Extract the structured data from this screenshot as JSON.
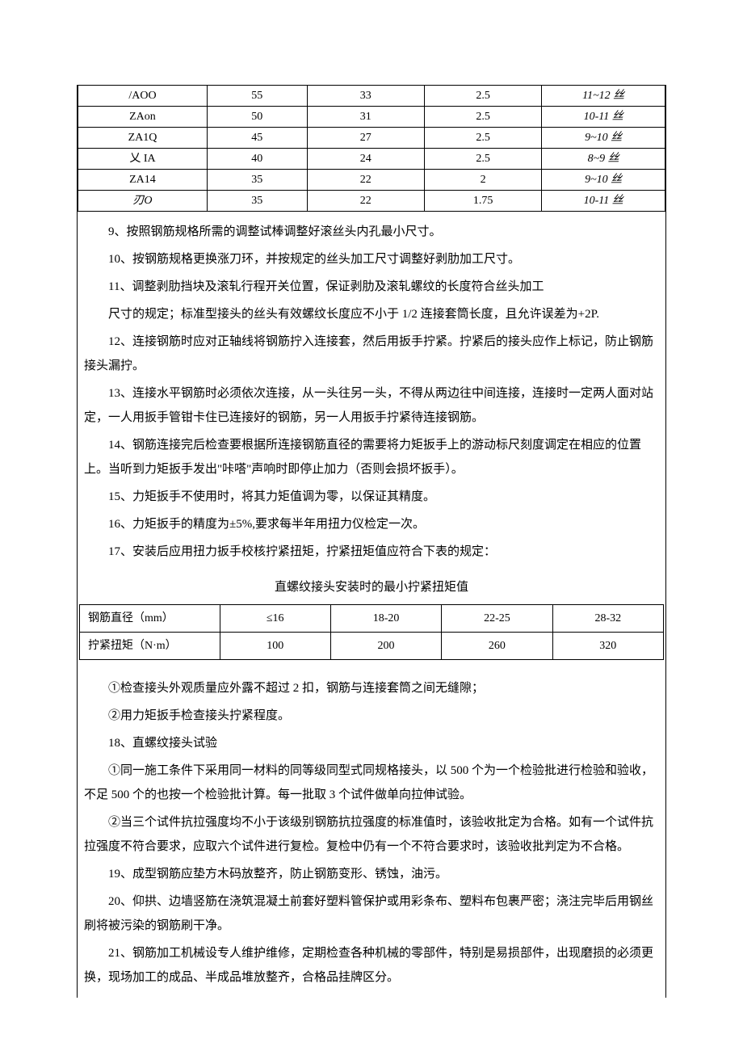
{
  "topTable": {
    "colWidths": [
      "22%",
      "17%",
      "20%",
      "20%",
      "21%"
    ],
    "rows": [
      {
        "c0": "/AOO",
        "c1": "55",
        "c2": "33",
        "c3": "2.5",
        "c4": "11~12 丝",
        "c0_italic": false,
        "c4_italic": true
      },
      {
        "c0": "ZAon",
        "c1": "50",
        "c2": "31",
        "c3": "2.5",
        "c4": "10-11 丝",
        "c0_italic": false,
        "c4_italic": true
      },
      {
        "c0": "ZA1Q",
        "c1": "45",
        "c2": "27",
        "c3": "2.5",
        "c4": "9~10 丝",
        "c0_italic": false,
        "c4_italic": true
      },
      {
        "c0": "乂 IA",
        "c1": "40",
        "c2": "24",
        "c3": "2.5",
        "c4": "8~9 丝",
        "c0_italic": false,
        "c4_italic": true
      },
      {
        "c0": "ZA14",
        "c1": "35",
        "c2": "22",
        "c3": "2",
        "c4": "9~10 丝",
        "c0_italic": false,
        "c4_italic": true
      },
      {
        "c0": "刃O",
        "c1": "35",
        "c2": "22",
        "c3": "1.75",
        "c4": "10-11 丝",
        "c0_italic": true,
        "c4_italic": true
      }
    ]
  },
  "paras1": [
    "9、按照钢筋规格所需的调整试棒调整好滚丝头内孔最小尺寸。",
    "10、按钢筋规格更换涨刀环，并按规定的丝头加工尺寸调整好剥肋加工尺寸。",
    "11、调整剥肋挡块及滚轧行程开关位置，保证剥肋及滚轧螺纹的长度符合丝头加工",
    "尺寸的规定；标准型接头的丝头有效螺纹长度应不小于 1/2 连接套筒长度，且允许误差为+2P.",
    "12、连接钢筋时应对正轴线将钢筋拧入连接套，然后用扳手拧紧。拧紧后的接头应作上标记，防止钢筋接头漏拧。",
    "13、连接水平钢筋时必须依次连接，从一头往另一头，不得从两边往中间连接，连接时一定两人面对站定，一人用扳手管钳卡住已连接好的钢筋，另一人用扳手拧紧待连接钢筋。",
    "14、钢筋连接完后检查要根据所连接钢筋直径的需要将力矩扳手上的游动标尺刻度调定在相应的位置上。当听到力矩扳手发出\"咔嗒\"声响时即停止加力（否则会损坏扳手）。",
    "15、力矩扳手不使用时，将其力矩值调为零，以保证其精度。",
    "16、力矩扳手的精度为±5%,要求每半年用扭力仪检定一次。",
    "17、安装后应用扭力扳手校核拧紧扭矩，拧紧扭矩值应符合下表的规定："
  ],
  "caption": "直螺纹接头安装时的最小拧紧扭矩值",
  "torqueTable": {
    "header": {
      "label": "钢筋直径（mm）",
      "c1": "≤16",
      "c2": "18-20",
      "c3": "22-25",
      "c4": "28-32"
    },
    "row": {
      "label": "拧紧扭矩（N·m）",
      "c1": "100",
      "c2": "200",
      "c3": "260",
      "c4": "320"
    },
    "colWidths": [
      "24%",
      "19%",
      "19%",
      "19%",
      "19%"
    ]
  },
  "paras2": [
    "①检查接头外观质量应外露不超过 2 扣，钢筋与连接套筒之间无缝隙；",
    "②用力矩扳手检查接头拧紧程度。",
    "18、直螺纹接头试验",
    "①同一施工条件下采用同一材料的同等级同型式同规格接头，以 500 个为一个检验批进行检验和验收，不足 500 个的也按一个检验批计算。每一批取 3 个试件做单向拉伸试验。",
    "②当三个试件抗拉强度均不小于该级别钢筋抗拉强度的标准值时，该验收批定为合格。如有一个试件抗拉强度不符合要求，应取六个试件进行复检。复检中仍有一个不符合要求时，该验收批判定为不合格。",
    "19、成型钢筋应垫方木码放整齐，防止钢筋变形、锈蚀，油污。",
    "20、仰拱、边墙竖筋在浇筑混凝土前套好塑料管保护或用彩条布、塑料布包裹严密；浇注完毕后用钢丝刷将被污染的钢筋刷干净。",
    "21、钢筋加工机械设专人维护维修，定期检查各种机械的零部件，特别是易损部件，出现磨损的必须更换，现场加工的成品、半成品堆放整齐，合格品挂牌区分。"
  ],
  "paras2_indent": [
    true,
    true,
    true,
    true,
    true,
    true,
    true,
    true
  ],
  "paras1_hang": [
    false,
    false,
    false,
    false,
    true,
    true,
    true,
    false,
    false,
    false
  ],
  "paras2_hang": [
    false,
    false,
    false,
    true,
    true,
    false,
    false,
    false
  ]
}
